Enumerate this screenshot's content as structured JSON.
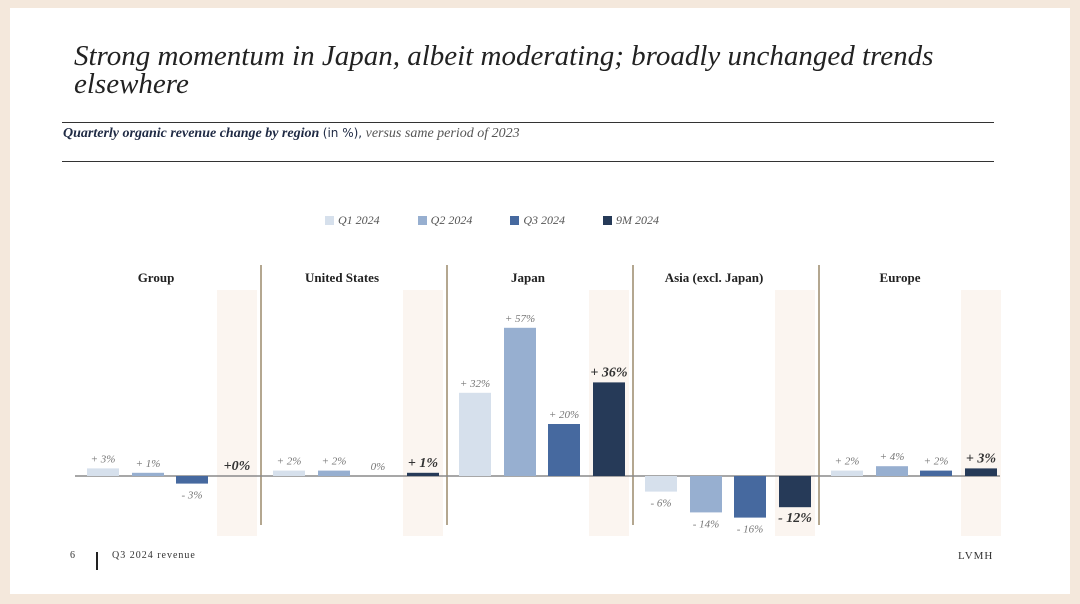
{
  "title": "Strong momentum in Japan, albeit moderating; broadly unchanged trends elsewhere",
  "subtitle": {
    "main": "Quarterly organic revenue change by region",
    "unit": "(in %),",
    "suffix": "versus same period of 2023"
  },
  "footer": {
    "page": "6",
    "label": "Q3 2024 revenue",
    "brand": "LVMH"
  },
  "chart_data": {
    "type": "bar",
    "title": "Quarterly organic revenue change by region (in %), versus same period of 2023",
    "categories": [
      "Group",
      "United States",
      "Japan",
      "Asia (excl. Japan)",
      "Europe"
    ],
    "series": [
      {
        "name": "Q1 2024",
        "color": "#d6e0ec",
        "values": [
          3,
          2,
          32,
          -6,
          2
        ],
        "labels": [
          "+ 3%",
          "+ 2%",
          "+ 32%",
          "- 6%",
          "+ 2%"
        ]
      },
      {
        "name": "Q2 2024",
        "color": "#97afd0",
        "values": [
          1,
          2,
          57,
          -14,
          4
        ],
        "labels": [
          "+ 1%",
          "+ 2%",
          "+ 57%",
          "- 14%",
          "+ 4%"
        ]
      },
      {
        "name": "Q3 2024",
        "color": "#46699f",
        "values": [
          -3,
          0,
          20,
          -16,
          2
        ],
        "labels": [
          "- 3%",
          "0%",
          "+ 20%",
          "- 16%",
          "+ 2%"
        ]
      },
      {
        "name": "9M 2024",
        "color": "#263a58",
        "values": [
          0,
          1,
          36,
          -12,
          3
        ],
        "labels": [
          "+0%",
          "+ 1%",
          "+ 36%",
          "- 12%",
          "+ 3%"
        ]
      }
    ],
    "legend": "top"
  }
}
